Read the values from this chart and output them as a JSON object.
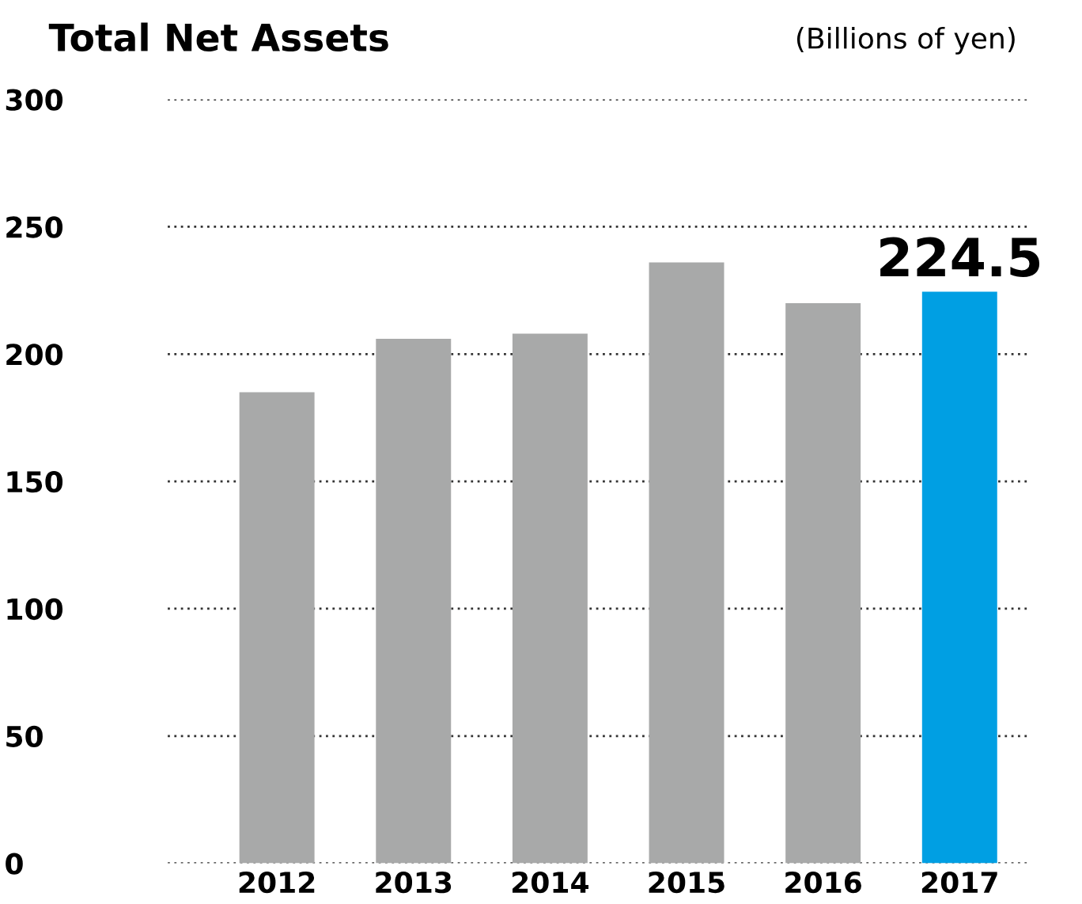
{
  "chart_data": {
    "type": "bar",
    "title": "Total Net Assets",
    "ylabel": "(Billions of yen)",
    "categories": [
      "2012",
      "2013",
      "2014",
      "2015",
      "2016",
      "2017"
    ],
    "values": [
      185,
      206,
      208,
      236,
      220,
      224.5
    ],
    "colors": [
      "#a8a9a9",
      "#a8a9a9",
      "#a8a9a9",
      "#a8a9a9",
      "#a8a9a9",
      "#009fe3"
    ],
    "value_labels": [
      null,
      null,
      null,
      null,
      null,
      "224.5"
    ],
    "ylim": [
      0,
      300
    ],
    "yticks": [
      0,
      50,
      100,
      150,
      200,
      250,
      300
    ],
    "grid": "y"
  }
}
